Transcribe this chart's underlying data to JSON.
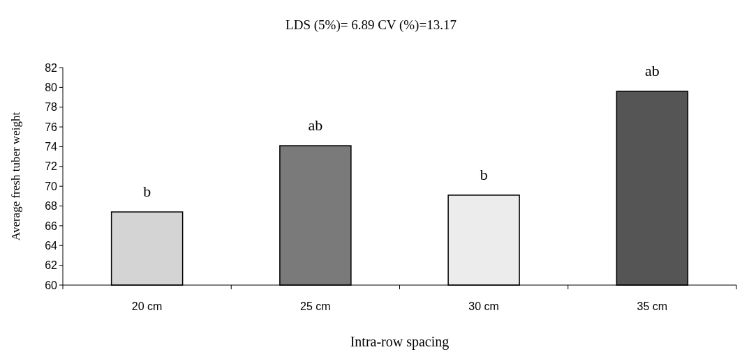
{
  "chart_data": {
    "type": "bar",
    "title": "LDS (5%)= 6.89 CV (%)=13.17",
    "xlabel": "Intra-row spacing",
    "ylabel": "Average fresh tuber weight",
    "categories": [
      "20 cm",
      "25 cm",
      "30 cm",
      "35 cm"
    ],
    "values": [
      67.4,
      74.1,
      69.1,
      79.6
    ],
    "colors": [
      "#d4d4d4",
      "#7a7a7a",
      "#ececec",
      "#555555"
    ],
    "ylim": [
      60,
      82
    ],
    "yticks": [
      60,
      62,
      64,
      66,
      68,
      70,
      72,
      74,
      76,
      78,
      80,
      82
    ],
    "value_labels": [
      "b",
      "ab",
      "b",
      "ab"
    ]
  }
}
